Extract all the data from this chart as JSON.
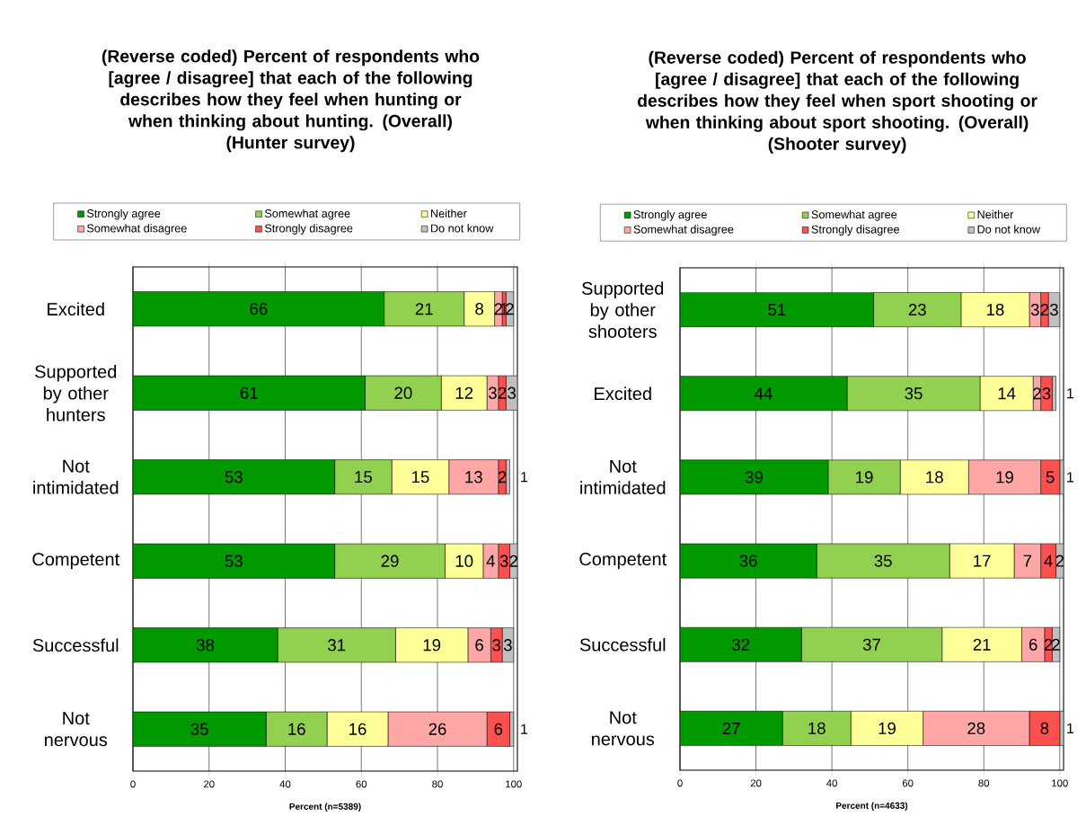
{
  "chart_data": [
    {
      "type": "bar",
      "orientation": "horizontal",
      "stacked": true,
      "data_labels": true,
      "grid": "x",
      "legend": "top",
      "title": "(Reverse coded) Percent of respondents who [agree / disagree] that each of the following describes how they feel when hunting or when thinking about hunting. (Overall)",
      "subtitle": "(Hunter survey)",
      "xlabel": "Percent (n=5389)",
      "categories": [
        "Excited",
        "Supported by other hunters",
        "Not intimidated",
        "Competent",
        "Successful",
        "Not nervous"
      ],
      "xlim": [
        0,
        101
      ],
      "xticks": [
        0,
        20,
        40,
        60,
        80,
        100
      ],
      "series": [
        {
          "name": "Strongly agree",
          "color": "#009900",
          "values": [
            66,
            61,
            53,
            53,
            38,
            35
          ]
        },
        {
          "name": "Somewhat agree",
          "color": "#92d050",
          "values": [
            21,
            20,
            15,
            29,
            31,
            16
          ]
        },
        {
          "name": "Neither",
          "color": "#ffff99",
          "values": [
            8,
            12,
            15,
            10,
            19,
            16
          ]
        },
        {
          "name": "Somewhat disagree",
          "color": "#ffa6a6",
          "values": [
            2,
            3,
            13,
            4,
            6,
            26
          ]
        },
        {
          "name": "Strongly disagree",
          "color": "#ff5050",
          "values": [
            1,
            2,
            2,
            3,
            3,
            6
          ]
        },
        {
          "name": "Do not know",
          "color": "#c0c0c0",
          "values": [
            2,
            3,
            1,
            2,
            3,
            1
          ]
        }
      ]
    },
    {
      "type": "bar",
      "orientation": "horizontal",
      "stacked": true,
      "data_labels": true,
      "grid": "x",
      "legend": "top",
      "title": "(Reverse coded) Percent of respondents who [agree / disagree] that each of the following describes how they feel when sport shooting or when thinking about sport shooting. (Overall)",
      "subtitle": "(Shooter survey)",
      "xlabel": "Percent (n=4633)",
      "categories": [
        "Supported by other shooters",
        "Excited",
        "Not intimidated",
        "Competent",
        "Successful",
        "Not nervous"
      ],
      "xlim": [
        0,
        101
      ],
      "xticks": [
        0,
        20,
        40,
        60,
        80,
        100
      ],
      "series": [
        {
          "name": "Strongly agree",
          "color": "#009900",
          "values": [
            51,
            44,
            39,
            36,
            32,
            27
          ]
        },
        {
          "name": "Somewhat agree",
          "color": "#92d050",
          "values": [
            23,
            35,
            19,
            35,
            37,
            18
          ]
        },
        {
          "name": "Neither",
          "color": "#ffff99",
          "values": [
            18,
            14,
            18,
            17,
            21,
            19
          ]
        },
        {
          "name": "Somewhat disagree",
          "color": "#ffa6a6",
          "values": [
            3,
            2,
            19,
            7,
            6,
            28
          ]
        },
        {
          "name": "Strongly disagree",
          "color": "#ff5050",
          "values": [
            2,
            3,
            5,
            4,
            2,
            8
          ]
        },
        {
          "name": "Do not know",
          "color": "#c0c0c0",
          "values": [
            3,
            1,
            1,
            2,
            2,
            1
          ]
        }
      ]
    }
  ]
}
